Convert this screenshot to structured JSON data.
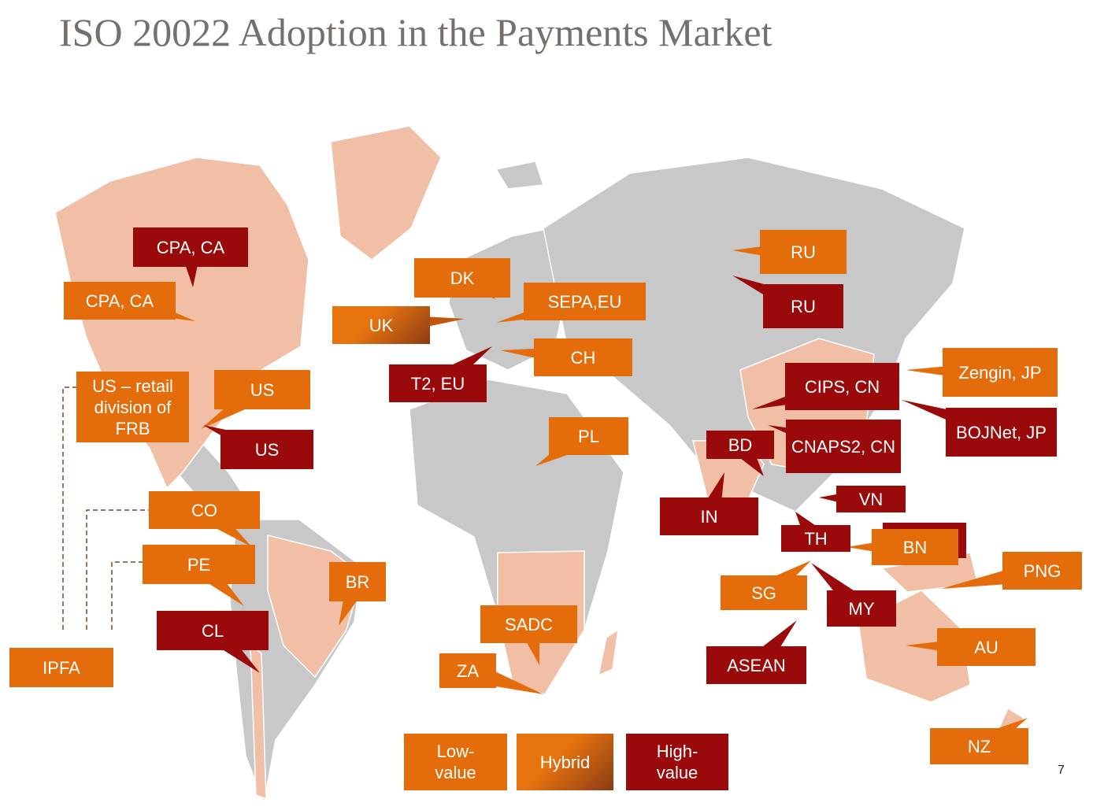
{
  "title": "ISO 20022 Adoption in the Payments Market",
  "page_number": "7",
  "labels": [
    {
      "text": "CPA, CA",
      "color": "high"
    },
    {
      "text": "CPA, CA",
      "color": "low"
    },
    {
      "text": "US – retail division of FRB",
      "color": "low"
    },
    {
      "text": "US",
      "color": "low"
    },
    {
      "text": "US",
      "color": "high"
    },
    {
      "text": "CO",
      "color": "low"
    },
    {
      "text": "PE",
      "color": "low"
    },
    {
      "text": "CL",
      "color": "high"
    },
    {
      "text": "IPFA",
      "color": "low"
    },
    {
      "text": "BR",
      "color": "low"
    },
    {
      "text": "DK",
      "color": "low"
    },
    {
      "text": "UK",
      "color": "hybrid"
    },
    {
      "text": "SEPA,EU",
      "color": "low"
    },
    {
      "text": "CH",
      "color": "low"
    },
    {
      "text": "T2, EU",
      "color": "high"
    },
    {
      "text": "PL",
      "color": "low"
    },
    {
      "text": "SADC",
      "color": "low"
    },
    {
      "text": "ZA",
      "color": "low"
    },
    {
      "text": "RU",
      "color": "low"
    },
    {
      "text": "RU",
      "color": "high"
    },
    {
      "text": "CIPS, CN",
      "color": "high"
    },
    {
      "text": "Zengin, JP",
      "color": "low"
    },
    {
      "text": "BOJNet, JP",
      "color": "high"
    },
    {
      "text": "CNAPS2, CN",
      "color": "high"
    },
    {
      "text": "BD",
      "color": "high"
    },
    {
      "text": "IN",
      "color": "high"
    },
    {
      "text": "VN",
      "color": "high"
    },
    {
      "text": "TH",
      "color": "high"
    },
    {
      "text": "BN",
      "color": "low"
    },
    {
      "text": "PNG",
      "color": "low"
    },
    {
      "text": "SG",
      "color": "low"
    },
    {
      "text": "MY",
      "color": "high"
    },
    {
      "text": "ASEAN",
      "color": "high"
    },
    {
      "text": "AU",
      "color": "low"
    },
    {
      "text": "NZ",
      "color": "low"
    }
  ],
  "legend": [
    {
      "text": "Low-value",
      "color": "low"
    },
    {
      "text": "Hybrid",
      "color": "hybrid"
    },
    {
      "text": "High-value",
      "color": "high"
    }
  ]
}
